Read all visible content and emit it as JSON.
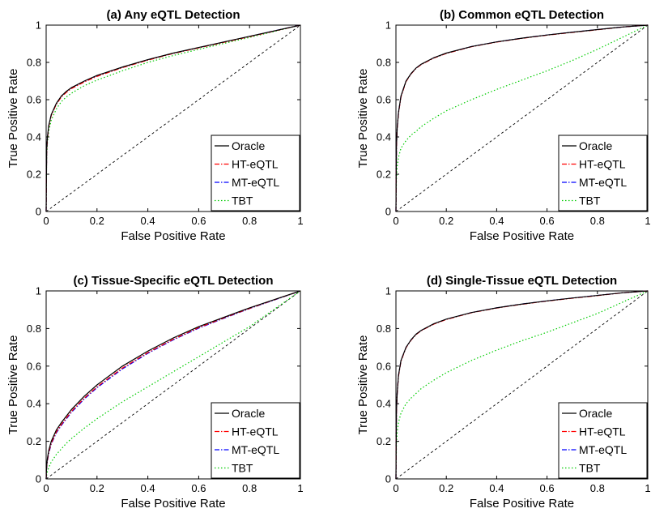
{
  "chart_data": [
    {
      "type": "line",
      "title": "(a) Any eQTL Detection",
      "xlabel": "False Positive Rate",
      "ylabel": "True Positive Rate",
      "xlim": [
        0,
        1
      ],
      "ylim": [
        0,
        1
      ],
      "xticks": [
        "0",
        "0.2",
        "0.4",
        "0.6",
        "0.8",
        "1"
      ],
      "yticks": [
        "0",
        "0.2",
        "0.4",
        "0.6",
        "0.8",
        "1"
      ],
      "legend": "bottom-right",
      "series": [
        {
          "name": "Oracle",
          "color": "#000000",
          "dash": "solid",
          "x": [
            0,
            0.002,
            0.005,
            0.01,
            0.02,
            0.04,
            0.06,
            0.08,
            0.1,
            0.15,
            0.2,
            0.3,
            0.4,
            0.5,
            0.6,
            0.7,
            0.8,
            0.9,
            1.0
          ],
          "y": [
            0,
            0.33,
            0.4,
            0.46,
            0.52,
            0.58,
            0.62,
            0.645,
            0.665,
            0.7,
            0.73,
            0.775,
            0.815,
            0.85,
            0.88,
            0.91,
            0.94,
            0.97,
            1.0
          ]
        },
        {
          "name": "HT-eQTL",
          "color": "#ff0000",
          "dash": "dashdot",
          "x": [
            0,
            0.002,
            0.005,
            0.01,
            0.02,
            0.04,
            0.06,
            0.08,
            0.1,
            0.15,
            0.2,
            0.3,
            0.4,
            0.5,
            0.6,
            0.7,
            0.8,
            0.9,
            1.0
          ],
          "y": [
            0,
            0.32,
            0.39,
            0.455,
            0.515,
            0.575,
            0.615,
            0.64,
            0.66,
            0.695,
            0.725,
            0.772,
            0.812,
            0.848,
            0.878,
            0.908,
            0.938,
            0.969,
            1.0
          ]
        },
        {
          "name": "MT-eQTL",
          "color": "#0000ff",
          "dash": "dashdot",
          "x": [
            0,
            0.002,
            0.005,
            0.01,
            0.02,
            0.04,
            0.06,
            0.08,
            0.1,
            0.15,
            0.2,
            0.3,
            0.4,
            0.5,
            0.6,
            0.7,
            0.8,
            0.9,
            1.0
          ],
          "y": [
            0,
            0.325,
            0.395,
            0.458,
            0.518,
            0.578,
            0.618,
            0.643,
            0.663,
            0.698,
            0.728,
            0.774,
            0.814,
            0.849,
            0.879,
            0.909,
            0.939,
            0.97,
            1.0
          ]
        },
        {
          "name": "TBT",
          "color": "#00cc00",
          "dash": "dotted",
          "x": [
            0,
            0.002,
            0.005,
            0.01,
            0.02,
            0.04,
            0.06,
            0.08,
            0.1,
            0.15,
            0.2,
            0.3,
            0.4,
            0.5,
            0.6,
            0.7,
            0.8,
            0.9,
            1.0
          ],
          "y": [
            0,
            0.3,
            0.37,
            0.43,
            0.49,
            0.55,
            0.59,
            0.615,
            0.635,
            0.675,
            0.705,
            0.755,
            0.8,
            0.837,
            0.87,
            0.902,
            0.934,
            0.967,
            1.0
          ]
        }
      ]
    },
    {
      "type": "line",
      "title": "(b) Common eQTL Detection",
      "xlabel": "False Positive Rate",
      "ylabel": "True Positive Rate",
      "xlim": [
        0,
        1
      ],
      "ylim": [
        0,
        1
      ],
      "xticks": [
        "0",
        "0.2",
        "0.4",
        "0.6",
        "0.8",
        "1"
      ],
      "yticks": [
        "0",
        "0.2",
        "0.4",
        "0.6",
        "0.8",
        "1"
      ],
      "legend": "bottom-right",
      "series": [
        {
          "name": "Oracle",
          "color": "#000000",
          "dash": "solid",
          "x": [
            0,
            0.002,
            0.005,
            0.01,
            0.02,
            0.04,
            0.06,
            0.08,
            0.1,
            0.15,
            0.2,
            0.3,
            0.4,
            0.5,
            0.6,
            0.7,
            0.8,
            0.9,
            1.0
          ],
          "y": [
            0,
            0.35,
            0.45,
            0.53,
            0.62,
            0.7,
            0.74,
            0.77,
            0.79,
            0.825,
            0.85,
            0.885,
            0.91,
            0.93,
            0.947,
            0.962,
            0.976,
            0.99,
            1.0
          ]
        },
        {
          "name": "HT-eQTL",
          "color": "#ff0000",
          "dash": "dashdot",
          "x": [
            0,
            0.002,
            0.005,
            0.01,
            0.02,
            0.04,
            0.06,
            0.08,
            0.1,
            0.15,
            0.2,
            0.3,
            0.4,
            0.5,
            0.6,
            0.7,
            0.8,
            0.9,
            1.0
          ],
          "y": [
            0,
            0.345,
            0.445,
            0.525,
            0.615,
            0.697,
            0.738,
            0.768,
            0.788,
            0.823,
            0.848,
            0.884,
            0.909,
            0.929,
            0.946,
            0.961,
            0.975,
            0.99,
            1.0
          ]
        },
        {
          "name": "MT-eQTL",
          "color": "#0000ff",
          "dash": "dashdot",
          "x": [
            0,
            0.002,
            0.005,
            0.01,
            0.02,
            0.04,
            0.06,
            0.08,
            0.1,
            0.15,
            0.2,
            0.3,
            0.4,
            0.5,
            0.6,
            0.7,
            0.8,
            0.9,
            1.0
          ],
          "y": [
            0,
            0.348,
            0.448,
            0.528,
            0.618,
            0.699,
            0.739,
            0.769,
            0.789,
            0.824,
            0.849,
            0.885,
            0.91,
            0.93,
            0.947,
            0.962,
            0.976,
            0.99,
            1.0
          ]
        },
        {
          "name": "TBT",
          "color": "#00cc00",
          "dash": "dotted",
          "x": [
            0,
            0.002,
            0.005,
            0.01,
            0.02,
            0.04,
            0.06,
            0.08,
            0.1,
            0.15,
            0.2,
            0.3,
            0.4,
            0.5,
            0.6,
            0.7,
            0.8,
            0.9,
            1.0
          ],
          "y": [
            0,
            0.18,
            0.24,
            0.29,
            0.34,
            0.38,
            0.41,
            0.43,
            0.455,
            0.5,
            0.54,
            0.6,
            0.655,
            0.705,
            0.755,
            0.81,
            0.87,
            0.935,
            1.0
          ]
        }
      ]
    },
    {
      "type": "line",
      "title": "(c) Tissue-Specific eQTL Detection",
      "xlabel": "False Positive Rate",
      "ylabel": "True Positive Rate",
      "xlim": [
        0,
        1
      ],
      "ylim": [
        0,
        1
      ],
      "xticks": [
        "0",
        "0.2",
        "0.4",
        "0.6",
        "0.8",
        "1"
      ],
      "yticks": [
        "0",
        "0.2",
        "0.4",
        "0.6",
        "0.8",
        "1"
      ],
      "legend": "bottom-right",
      "series": [
        {
          "name": "Oracle",
          "color": "#000000",
          "dash": "solid",
          "x": [
            0,
            0.002,
            0.005,
            0.01,
            0.02,
            0.04,
            0.06,
            0.08,
            0.1,
            0.15,
            0.2,
            0.3,
            0.4,
            0.5,
            0.6,
            0.7,
            0.8,
            0.9,
            1.0
          ],
          "y": [
            0,
            0.07,
            0.11,
            0.15,
            0.2,
            0.26,
            0.3,
            0.335,
            0.37,
            0.44,
            0.5,
            0.6,
            0.68,
            0.75,
            0.81,
            0.86,
            0.91,
            0.955,
            1.0
          ]
        },
        {
          "name": "HT-eQTL",
          "color": "#ff0000",
          "dash": "dashdot",
          "x": [
            0,
            0.002,
            0.005,
            0.01,
            0.02,
            0.04,
            0.06,
            0.08,
            0.1,
            0.15,
            0.2,
            0.3,
            0.4,
            0.5,
            0.6,
            0.7,
            0.8,
            0.9,
            1.0
          ],
          "y": [
            0,
            0.065,
            0.1,
            0.14,
            0.19,
            0.25,
            0.29,
            0.325,
            0.36,
            0.43,
            0.49,
            0.59,
            0.672,
            0.743,
            0.805,
            0.857,
            0.907,
            0.954,
            1.0
          ]
        },
        {
          "name": "MT-eQTL",
          "color": "#0000ff",
          "dash": "dashdot",
          "x": [
            0,
            0.002,
            0.005,
            0.01,
            0.02,
            0.04,
            0.06,
            0.08,
            0.1,
            0.15,
            0.2,
            0.3,
            0.4,
            0.5,
            0.6,
            0.7,
            0.8,
            0.9,
            1.0
          ],
          "y": [
            0,
            0.06,
            0.095,
            0.135,
            0.185,
            0.245,
            0.285,
            0.32,
            0.355,
            0.425,
            0.485,
            0.585,
            0.668,
            0.74,
            0.802,
            0.855,
            0.906,
            0.953,
            1.0
          ]
        },
        {
          "name": "TBT",
          "color": "#00cc00",
          "dash": "dotted",
          "x": [
            0,
            0.002,
            0.005,
            0.01,
            0.02,
            0.04,
            0.06,
            0.08,
            0.1,
            0.15,
            0.2,
            0.3,
            0.4,
            0.5,
            0.6,
            0.7,
            0.8,
            0.9,
            1.0
          ],
          "y": [
            0,
            0.02,
            0.04,
            0.06,
            0.09,
            0.13,
            0.16,
            0.19,
            0.215,
            0.27,
            0.32,
            0.41,
            0.49,
            0.57,
            0.65,
            0.73,
            0.81,
            0.905,
            1.0
          ]
        }
      ]
    },
    {
      "type": "line",
      "title": "(d) Single-Tissue eQTL Detection",
      "xlabel": "False Positive Rate",
      "ylabel": "True Positive Rate",
      "xlim": [
        0,
        1
      ],
      "ylim": [
        0,
        1
      ],
      "xticks": [
        "0",
        "0.2",
        "0.4",
        "0.6",
        "0.8",
        "1"
      ],
      "yticks": [
        "0",
        "0.2",
        "0.4",
        "0.6",
        "0.8",
        "1"
      ],
      "legend": "bottom-right",
      "series": [
        {
          "name": "Oracle",
          "color": "#000000",
          "dash": "solid",
          "x": [
            0,
            0.002,
            0.005,
            0.01,
            0.02,
            0.04,
            0.06,
            0.08,
            0.1,
            0.15,
            0.2,
            0.3,
            0.4,
            0.5,
            0.6,
            0.7,
            0.8,
            0.9,
            1.0
          ],
          "y": [
            0,
            0.36,
            0.46,
            0.55,
            0.63,
            0.7,
            0.74,
            0.77,
            0.79,
            0.825,
            0.85,
            0.885,
            0.91,
            0.93,
            0.947,
            0.962,
            0.976,
            0.99,
            1.0
          ]
        },
        {
          "name": "HT-eQTL",
          "color": "#ff0000",
          "dash": "dashdot",
          "x": [
            0,
            0.002,
            0.005,
            0.01,
            0.02,
            0.04,
            0.06,
            0.08,
            0.1,
            0.15,
            0.2,
            0.3,
            0.4,
            0.5,
            0.6,
            0.7,
            0.8,
            0.9,
            1.0
          ],
          "y": [
            0,
            0.355,
            0.455,
            0.545,
            0.626,
            0.698,
            0.738,
            0.768,
            0.788,
            0.823,
            0.848,
            0.884,
            0.909,
            0.929,
            0.946,
            0.961,
            0.975,
            0.99,
            1.0
          ]
        },
        {
          "name": "MT-eQTL",
          "color": "#0000ff",
          "dash": "dashdot",
          "x": [
            0,
            0.002,
            0.005,
            0.01,
            0.02,
            0.04,
            0.06,
            0.08,
            0.1,
            0.15,
            0.2,
            0.3,
            0.4,
            0.5,
            0.6,
            0.7,
            0.8,
            0.9,
            1.0
          ],
          "y": [
            0,
            0.358,
            0.458,
            0.548,
            0.628,
            0.699,
            0.739,
            0.769,
            0.789,
            0.824,
            0.849,
            0.885,
            0.91,
            0.93,
            0.947,
            0.962,
            0.976,
            0.99,
            1.0
          ]
        },
        {
          "name": "TBT",
          "color": "#00cc00",
          "dash": "dotted",
          "x": [
            0,
            0.002,
            0.005,
            0.01,
            0.02,
            0.04,
            0.06,
            0.08,
            0.1,
            0.15,
            0.2,
            0.3,
            0.4,
            0.5,
            0.6,
            0.7,
            0.8,
            0.9,
            1.0
          ],
          "y": [
            0,
            0.19,
            0.25,
            0.3,
            0.35,
            0.4,
            0.43,
            0.455,
            0.48,
            0.525,
            0.565,
            0.63,
            0.685,
            0.735,
            0.78,
            0.83,
            0.88,
            0.94,
            1.0
          ]
        }
      ]
    }
  ]
}
